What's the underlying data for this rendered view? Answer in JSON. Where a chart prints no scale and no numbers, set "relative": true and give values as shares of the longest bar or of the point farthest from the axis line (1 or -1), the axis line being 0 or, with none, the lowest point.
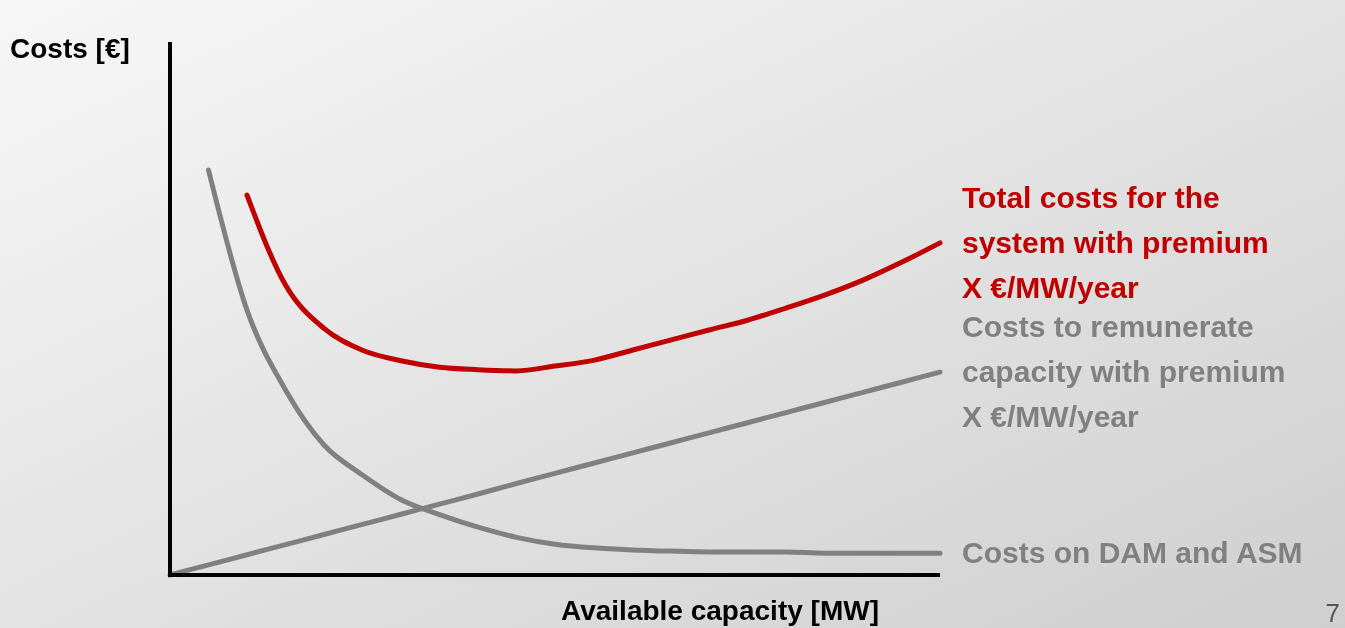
{
  "chart_data": {
    "type": "line",
    "relative": true,
    "xlabel": "Available capacity [MW]",
    "ylabel": "Costs [€]",
    "marker": "none",
    "line_style": "solid",
    "categories": [
      null,
      null,
      null,
      null,
      null,
      null,
      null,
      null,
      null,
      null,
      null,
      null,
      null,
      null,
      null,
      null,
      null,
      null,
      null,
      null,
      null
    ],
    "series": [
      {
        "name": "Total costs for the\nsystem with premium\nX €/MW/year",
        "color": "#c00000",
        "values": [
          null,
          null,
          0.938,
          0.716,
          0.609,
          0.555,
          0.529,
          0.513,
          0.507,
          0.504,
          0.516,
          0.53,
          0.555,
          0.58,
          0.605,
          0.629,
          0.659,
          0.691,
          0.728,
          0.772,
          0.82
        ]
      },
      {
        "name": "Costs to remunerate\ncapacity with premium\nX €/MW/year",
        "color": "#808080",
        "values": [
          0,
          0.025,
          0.05,
          0.075,
          0.1,
          0.125,
          0.15,
          0.175,
          0.2,
          0.226,
          0.251,
          0.276,
          0.301,
          0.326,
          0.351,
          0.376,
          0.401,
          0.426,
          0.451,
          0.476,
          0.501
        ]
      },
      {
        "name": "Costs on DAM and ASM",
        "color": "#808080",
        "values": [
          null,
          1,
          0.654,
          0.457,
          0.321,
          0.247,
          0.186,
          0.149,
          0.118,
          0.093,
          0.076,
          0.067,
          0.062,
          0.059,
          0.057,
          0.057,
          0.057,
          0.054,
          0.054,
          0.054,
          0.054
        ]
      }
    ],
    "annotations": [
      "7"
    ]
  }
}
